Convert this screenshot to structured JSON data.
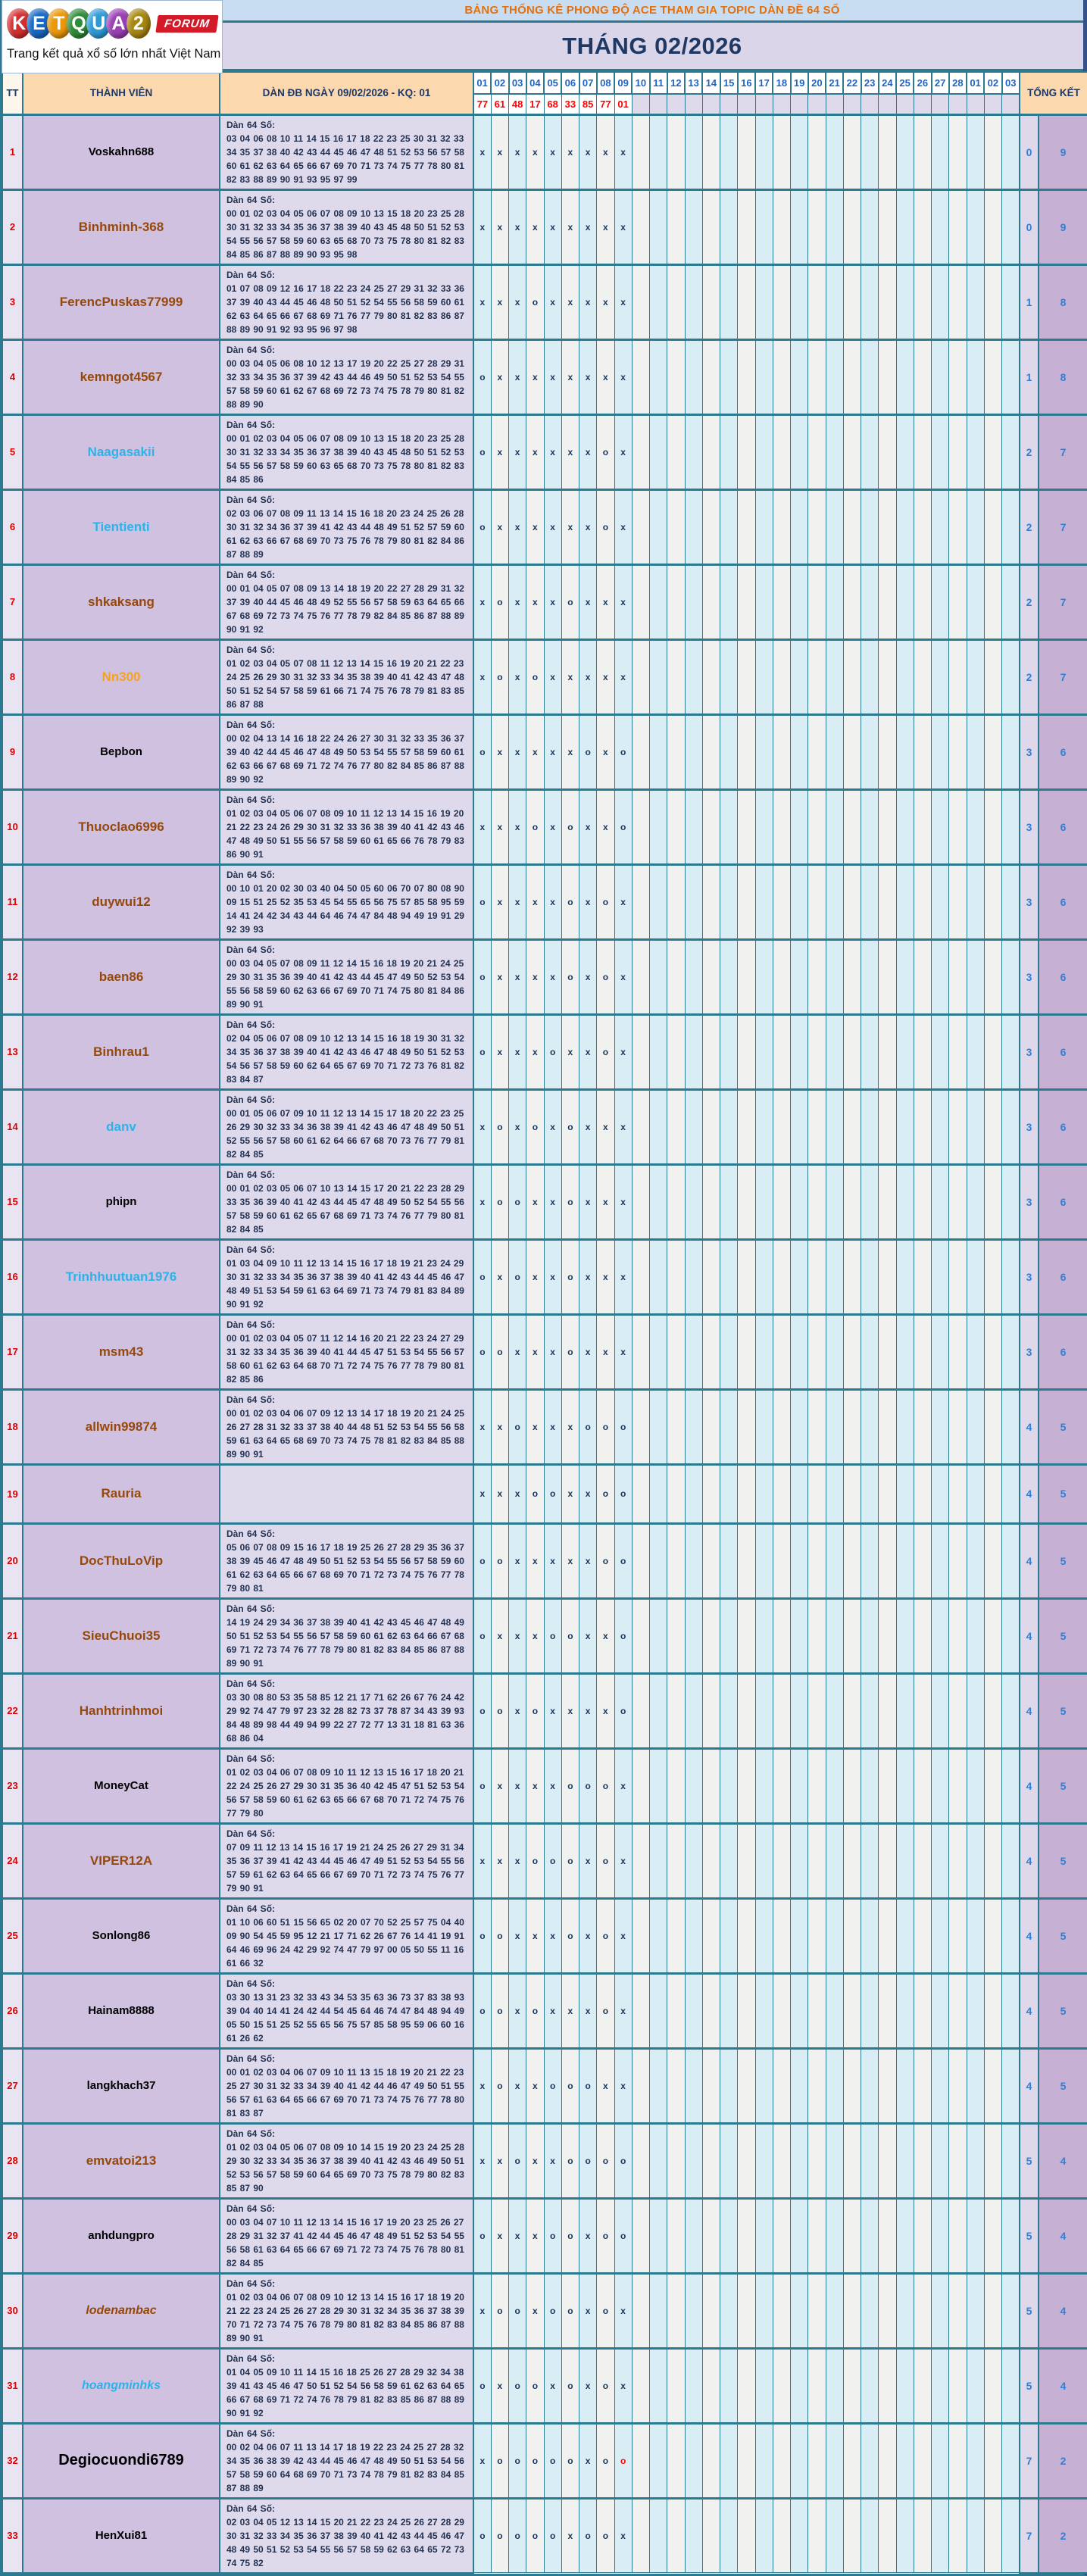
{
  "logo": {
    "letters": [
      {
        "ch": "K",
        "color": "#d42f2f"
      },
      {
        "ch": "E",
        "color": "#1768c6"
      },
      {
        "ch": "T",
        "color": "#eb9709"
      },
      {
        "ch": "Q",
        "color": "#2f8b37"
      },
      {
        "ch": "U",
        "color": "#2b9bd8"
      },
      {
        "ch": "A",
        "color": "#9b3fb5"
      },
      {
        "ch": "2",
        "color": "#a8870f"
      }
    ],
    "forum_badge": "FORUM",
    "tagline": "Trang kết quả xổ số lớn nhất Việt Nam"
  },
  "header": {
    "title": "BẢNG THỐNG KÊ PHONG ĐỘ ACE THAM GIA TOPIC DÀN ĐỀ 64 SỐ",
    "month": "THÁNG 02/2026"
  },
  "table": {
    "tt_label": "TT",
    "member_label": "THÀNH VIÊN",
    "dan_header": "DÀN ĐB NGÀY 09/02/2026 - KQ: 01",
    "total_label": "TỔNG KẾT",
    "dan_prefix": "Dàn 64 Số:",
    "day_columns": [
      "01",
      "02",
      "03",
      "04",
      "05",
      "06",
      "07",
      "08",
      "09",
      "10",
      "11",
      "12",
      "13",
      "14",
      "15",
      "16",
      "17",
      "18",
      "19",
      "20",
      "21",
      "22",
      "23",
      "24",
      "25",
      "26",
      "27",
      "28",
      "01",
      "02",
      "03"
    ],
    "results": [
      "77",
      "61",
      "48",
      "17",
      "68",
      "33",
      "85",
      "77",
      "01"
    ],
    "mark_color": "#17365d",
    "mark_red_color": "#ff0000",
    "rows": [
      {
        "tt": "1",
        "name": "Voskahn688",
        "color": "#000000",
        "size": 15,
        "numbers": "03 04 06 08 10 11 14 15 16 17 18 22 23 25 30 31 32 33 34 35 37 38 40 42 43 44 45 46 47 48 51 52 53 56 57 58 60 61 62 63 64 65 66 67 69 70 71 73 74 75 77 78 80 81 82 83 88 89 90 91 93 95 97 99",
        "marks": [
          "x",
          "x",
          "x",
          "x",
          "x",
          "x",
          "x",
          "x",
          "x"
        ],
        "total_o": "0",
        "total_x": "9"
      },
      {
        "tt": "2",
        "name": "Binhminh-368",
        "color": "#96480b",
        "size": 17,
        "numbers": "00 01 02 03 04 05 06 07 08 09 10 13 15 18 20 23 25 28 30 31 32 33 34 35 36 37 38 39 40 43 45 48 50 51 52 53 54 55 56 57 58 59 60 63 65 68 70 73 75 78 80 81 82 83 84 85 86 87 88 89 90 93 95 98",
        "marks": [
          "x",
          "x",
          "x",
          "x",
          "x",
          "x",
          "x",
          "x",
          "x"
        ],
        "total_o": "0",
        "total_x": "9"
      },
      {
        "tt": "3",
        "name": "FerencPuskas77999",
        "color": "#96480b",
        "size": 17,
        "numbers": "01 07 08 09 12 16 17 18 22 23 24 25 27 29 31 32 33 36 37 39 40 43 44 45 46 48 50 51 52 54 55 56 58 59 60 61 62 63 64 65 66 67 68 69 71 76 77 79 80 81 82 83 86 87 88 89 90 91 92 93 95 96 97 98",
        "marks": [
          "x",
          "x",
          "x",
          "o",
          "x",
          "x",
          "x",
          "x",
          "x"
        ],
        "total_o": "1",
        "total_x": "8"
      },
      {
        "tt": "4",
        "name": "kemngot4567",
        "color": "#96480b",
        "size": 17,
        "numbers": "00 03 04 05 06 08 10 12 13 17 19 20 22 25 27 28 29 31 32 33 34 35 36 37 39 42 43 44 46 49 50 51 52 53 54 55 57 58 59 60 61 62 67 68 69 72 73 74 75 78 79 80 81 82 88 89 90",
        "marks": [
          "o",
          "x",
          "x",
          "x",
          "x",
          "x",
          "x",
          "x",
          "x"
        ],
        "total_o": "1",
        "total_x": "8"
      },
      {
        "tt": "5",
        "name": "Naagasakii",
        "color": "#2eb2ea",
        "size": 17,
        "numbers": "00 01 02 03 04 05 06 07 08 09 10 13 15 18 20 23 25 28 30 31 32 33 34 35 36 37 38 39 40 43 45 48 50 51 52 53 54 55 56 57 58 59 60 63 65 68 70 73 75 78 80 81 82 83 84 85 86",
        "marks": [
          "o",
          "x",
          "x",
          "x",
          "x",
          "x",
          "x",
          "o",
          "x"
        ],
        "total_o": "2",
        "total_x": "7"
      },
      {
        "tt": "6",
        "name": "Tientienti",
        "color": "#2eb2ea",
        "size": 17,
        "numbers": "02 03 06 07 08 09 11 13 14 15 16 18 20 23 24 25 26 28 30 31 32 34 36 37 39 41 42 43 44 48 49 51 52 57 59 60 61 62 63 66 67 68 69 70 73 75 76 78 79 80 81 82 84 86 87 88 89",
        "marks": [
          "o",
          "x",
          "x",
          "x",
          "x",
          "x",
          "x",
          "o",
          "x"
        ],
        "total_o": "2",
        "total_x": "7"
      },
      {
        "tt": "7",
        "name": "shkaksang",
        "color": "#96480b",
        "size": 17,
        "numbers": "00 01 04 05 07 08 09 13 14 18 19 20 22 27 28 29 31 32 37 39 40 44 45 46 48 49 52 55 56 57 58 59 63 64 65 66 67 68 69 72 73 74 75 76 77 78 79 82 84 85 86 87 88 89 90 91 92",
        "marks": [
          "x",
          "o",
          "x",
          "x",
          "x",
          "o",
          "x",
          "x",
          "x"
        ],
        "total_o": "2",
        "total_x": "7"
      },
      {
        "tt": "8",
        "name": "Nn300",
        "color": "#f6a21d",
        "size": 17,
        "numbers": "01 02 03 04 05 07 08 11 12 13 14 15 16 19 20 21 22 23 24 25 26 29 30 31 32 33 34 35 38 39 40 41 42 43 47 48 50 51 52 54 57 58 59 61 66 71 74 75 76 78 79 81 83 85 86 87 88",
        "marks": [
          "x",
          "o",
          "x",
          "o",
          "x",
          "x",
          "x",
          "x",
          "x"
        ],
        "total_o": "2",
        "total_x": "7"
      },
      {
        "tt": "9",
        "name": "Bepbon",
        "color": "#000000",
        "size": 15,
        "numbers": "00 02 04 13 14 16 18 22 24 26 27 30 31 32 33 35 36 37 39 40 42 44 45 46 47 48 49 50 53 54 55 57 58 59 60 61 62 63 66 67 68 69 71 72 74 76 77 80 82 84 85 86 87 88 89 90 92",
        "marks": [
          "o",
          "x",
          "x",
          "x",
          "x",
          "x",
          "o",
          "x",
          "o"
        ],
        "total_o": "3",
        "total_x": "6"
      },
      {
        "tt": "10",
        "name": "Thuoclao6996",
        "color": "#96480b",
        "size": 17,
        "numbers": "01 02 03 04 05 06 07 08 09 10 11 12 13 14 15 16 19 20 21 22 23 24 26 29 30 31 32 33 36 38 39 40 41 42 43 46 47 48 49 50 51 55 56 57 58 59 60 61 65 66 76 78 79 83 86 90 91",
        "marks": [
          "x",
          "x",
          "x",
          "o",
          "x",
          "o",
          "x",
          "x",
          "o"
        ],
        "total_o": "3",
        "total_x": "6"
      },
      {
        "tt": "11",
        "name": "duywui12",
        "color": "#96480b",
        "size": 17,
        "numbers": "00 10 01 20 02 30 03 40 04 50 05 60 06 70 07 80 08 90 09 15 51 25 52 35 53 45 54 55 65 56 75 57 85 58 95 59 14 41 24 42 34 43 44 64 46 74 47 84 48 94 49 19 91 29 92 39 93",
        "marks": [
          "o",
          "x",
          "x",
          "x",
          "x",
          "o",
          "x",
          "o",
          "x"
        ],
        "total_o": "3",
        "total_x": "6"
      },
      {
        "tt": "12",
        "name": "baen86",
        "color": "#96480b",
        "size": 17,
        "numbers": "00 03 04 05 07 08 09 11 12 14 15 16 18 19 20 21 24 25 29 30 31 35 36 39 40 41 42 43 44 45 47 49 50 52 53 54 55 56 58 59 60 62 63 66 67 69 70 71 74 75 80 81 84 86 89 90 91",
        "marks": [
          "o",
          "x",
          "x",
          "x",
          "x",
          "o",
          "x",
          "o",
          "x"
        ],
        "total_o": "3",
        "total_x": "6"
      },
      {
        "tt": "13",
        "name": "Binhrau1",
        "color": "#96480b",
        "size": 17,
        "numbers": "02 04 05 06 07 08 09 10 12 13 14 15 16 18 19 30 31 32 34 35 36 37 38 39 40 41 42 43 46 47 48 49 50 51 52 53 54 56 57 58 59 60 62 64 65 67 69 70 71 72 73 76 81 82 83 84 87",
        "marks": [
          "o",
          "x",
          "x",
          "x",
          "o",
          "x",
          "x",
          "o",
          "x"
        ],
        "total_o": "3",
        "total_x": "6"
      },
      {
        "tt": "14",
        "name": "danv",
        "color": "#2eb2ea",
        "size": 17,
        "numbers": "00 01 05 06 07 09 10 11 12 13 14 15 17 18 20 22 23 25 26 29 30 32 33 34 36 38 39 41 42 43 46 47 48 49 50 51 52 55 56 57 58 60 61 62 64 66 67 68 70 73 76 77 79 81 82 84 85",
        "marks": [
          "x",
          "o",
          "x",
          "o",
          "x",
          "o",
          "x",
          "x",
          "x"
        ],
        "total_o": "3",
        "total_x": "6"
      },
      {
        "tt": "15",
        "name": "phipn",
        "color": "#000000",
        "size": 15,
        "numbers": "00 01 02 03 05 06 07 10 13 14 15 17 20 21 22 23 28 29 33 35 36 39 40 41 42 43 44 45 47 48 49 50 52 54 55 56 57 58 59 60 61 62 65 67 68 69 71 73 74 76 77 79 80 81 82 84 85",
        "marks": [
          "x",
          "o",
          "o",
          "x",
          "x",
          "o",
          "x",
          "x",
          "x"
        ],
        "total_o": "3",
        "total_x": "6"
      },
      {
        "tt": "16",
        "name": "Trinhhuutuan1976",
        "color": "#2eb2ea",
        "size": 17,
        "numbers": "01 03 04 09 10 11 12 13 14 15 16 17 18 19 21 23 24 29 30 31 32 33 34 35 36 37 38 39 40 41 42 43 44 45 46 47 48 49 51 53 54 59 61 63 64 69 71 73 74 79 81 83 84 89 90 91 92",
        "marks": [
          "o",
          "x",
          "o",
          "x",
          "x",
          "o",
          "x",
          "x",
          "x"
        ],
        "total_o": "3",
        "total_x": "6"
      },
      {
        "tt": "17",
        "name": "msm43",
        "color": "#96480b",
        "size": 17,
        "numbers": "00 01 02 03 04 05 07 11 12 14 16 20 21 22 23 24 27 29 31 32 33 34 35 36 39 40 41 44 45 47 51 53 54 55 56 57 58 60 61 62 63 64 68 70 71 72 74 75 76 77 78 79 80 81 82 85 86",
        "marks": [
          "o",
          "o",
          "x",
          "x",
          "x",
          "o",
          "x",
          "x",
          "x"
        ],
        "total_o": "3",
        "total_x": "6"
      },
      {
        "tt": "18",
        "name": "allwin99874",
        "color": "#96480b",
        "size": 17,
        "numbers": "00 01 02 03 04 06 07 09 12 13 14 17 18 19 20 21 24 25 26 27 28 31 32 33 37 38 40 44 48 51 52 53 54 55 56 58 59 61 63 64 65 68 69 70 73 74 75 78 81 82 83 84 85 88 89 90 91",
        "marks": [
          "x",
          "x",
          "o",
          "x",
          "x",
          "x",
          "o",
          "o",
          "o"
        ],
        "total_o": "4",
        "total_x": "5"
      },
      {
        "tt": "19",
        "name": "Rauria",
        "color": "#96480b",
        "size": 17,
        "numbers": "",
        "marks": [
          "x",
          "x",
          "x",
          "o",
          "o",
          "x",
          "x",
          "o",
          "o"
        ],
        "total_o": "4",
        "total_x": "5"
      },
      {
        "tt": "20",
        "name": "DocThuLoVip",
        "color": "#96480b",
        "size": 17,
        "numbers": "05 06 07 08 09 15 16 17 18 19 25 26 27 28 29 35 36 37 38 39 45 46 47 48 49 50 51 52 53 54 55 56 57 58 59 60 61 62 63 64 65 66 67 68 69 70 71 72 73 74 75 76 77 78 79 80 81",
        "marks": [
          "o",
          "o",
          "x",
          "x",
          "x",
          "x",
          "x",
          "o",
          "o"
        ],
        "total_o": "4",
        "total_x": "5"
      },
      {
        "tt": "21",
        "name": "SieuChuoi35",
        "color": "#96480b",
        "size": 17,
        "numbers": "14 19 24 29 34 36 37 38 39 40 41 42 43 45 46 47 48 49 50 51 52 53 54 55 56 57 58 59 60 61 62 63 64 66 67 68 69 71 72 73 74 76 77 78 79 80 81 82 83 84 85 86 87 88 89 90 91",
        "marks": [
          "o",
          "x",
          "x",
          "x",
          "o",
          "o",
          "x",
          "x",
          "o"
        ],
        "total_o": "4",
        "total_x": "5"
      },
      {
        "tt": "22",
        "name": "Hanhtrinhmoi",
        "color": "#96480b",
        "size": 17,
        "numbers": "03 30 08 80 53 35 58 85 12 21 17 71 62 26 67 76 24 42 29 92 74 47 79 97 23 32 28 82 73 37 78 87 34 43 39 93 84 48 89 98 44 49 94 99 22 27 72 77 13 31 18 81 63 36 68 86 04",
        "marks": [
          "o",
          "o",
          "x",
          "o",
          "x",
          "x",
          "x",
          "x",
          "o"
        ],
        "total_o": "4",
        "total_x": "5"
      },
      {
        "tt": "23",
        "name": "MoneyCat",
        "color": "#000000",
        "size": 15,
        "numbers": "01 02 03 04 06 07 08 09 10 11 12 13 15 16 17 18 20 21 22 24 25 26 27 29 30 31 35 36 40 42 45 47 51 52 53 54 56 57 58 59 60 61 62 63 65 66 67 68 70 71 72 74 75 76 77 79 80",
        "marks": [
          "o",
          "x",
          "x",
          "x",
          "x",
          "o",
          "o",
          "o",
          "x"
        ],
        "total_o": "4",
        "total_x": "5"
      },
      {
        "tt": "24",
        "name": "VIPER12A",
        "color": "#96480b",
        "size": 17,
        "numbers": "07 09 11 12 13 14 15 16 17 19 21 24 25 26 27 29 31 34 35 36 37 39 41 42 43 44 45 46 47 49 51 52 53 54 55 56 57 59 61 62 63 64 65 66 67 69 70 71 72 73 74 75 76 77 79 90 91",
        "marks": [
          "x",
          "x",
          "x",
          "o",
          "o",
          "o",
          "x",
          "o",
          "x"
        ],
        "total_o": "4",
        "total_x": "5"
      },
      {
        "tt": "25",
        "name": "Sonlong86",
        "color": "#000000",
        "size": 15,
        "numbers": "01 10 06 60 51 15 56 65 02 20 07 70 52 25 57 75 04 40 09 90 54 45 59 95 12 21 17 71 62 26 67 76 14 41 19 91 64 46 69 96 24 42 29 92 74 47 79 97 00 05 50 55 11 16 61 66 32",
        "marks": [
          "o",
          "o",
          "x",
          "x",
          "x",
          "o",
          "x",
          "o",
          "x"
        ],
        "total_o": "4",
        "total_x": "5"
      },
      {
        "tt": "26",
        "name": "Hainam8888",
        "color": "#000000",
        "size": 15,
        "numbers": "03 30 13 31 23 32 33 43 34 53 35 63 36 73 37 83 38 93 39 04 40 14 41 24 42 44 54 45 64 46 74 47 84 48 94 49 05 50 15 51 25 52 55 65 56 75 57 85 58 95 59 06 60 16 61 26 62",
        "marks": [
          "o",
          "o",
          "x",
          "o",
          "x",
          "x",
          "x",
          "o",
          "x"
        ],
        "total_o": "4",
        "total_x": "5"
      },
      {
        "tt": "27",
        "name": "langkhach37",
        "color": "#000000",
        "size": 15,
        "numbers": "00 01 02 03 04 06 07 09 10 11 13 15 18 19 20 21 22 23 25 27 30 31 32 33 34 39 40 41 42 44 46 47 49 50 51 55 56 57 61 63 64 65 66 67 69 70 71 73 74 75 76 77 78 80 81 83 87",
        "marks": [
          "x",
          "o",
          "x",
          "x",
          "o",
          "o",
          "o",
          "x",
          "x"
        ],
        "total_o": "4",
        "total_x": "5"
      },
      {
        "tt": "28",
        "name": "emvatoi213",
        "color": "#96480b",
        "size": 17,
        "numbers": "01 02 03 04 05 06 07 08 09 10 14 15 19 20 23 24 25 28 29 30 32 33 34 35 36 37 38 39 40 41 42 43 46 49 50 51 52 53 56 57 58 59 60 64 65 69 70 73 75 78 79 80 82 83 85 87 90",
        "marks": [
          "x",
          "x",
          "o",
          "x",
          "x",
          "o",
          "o",
          "o",
          "o"
        ],
        "total_o": "5",
        "total_x": "4"
      },
      {
        "tt": "29",
        "name": "anhdungpro",
        "color": "#000000",
        "size": 15,
        "numbers": "00 03 04 07 10 11 12 13 14 15 16 17 19 20 23 25 26 27 28 29 31 32 37 41 42 44 45 46 47 48 49 51 52 53 54 55 56 58 61 63 64 65 66 67 69 71 72 73 74 75 76 78 80 81 82 84 85",
        "marks": [
          "o",
          "x",
          "x",
          "x",
          "o",
          "o",
          "x",
          "o",
          "o"
        ],
        "total_o": "5",
        "total_x": "4"
      },
      {
        "tt": "30",
        "name": "lodenambac",
        "color": "#96480b",
        "size": 16,
        "italic": true,
        "numbers": "01 02 03 04 06 07 08 09 10 12 13 14 15 16 17 18 19 20 21 22 23 24 25 26 27 28 29 30 31 32 34 35 36 37 38 39 70 71 72 73 74 75 76 78 79 80 81 82 83 84 85 86 87 88 89 90 91",
        "marks": [
          "x",
          "o",
          "o",
          "x",
          "o",
          "o",
          "x",
          "o",
          "x"
        ],
        "total_o": "5",
        "total_x": "4"
      },
      {
        "tt": "31",
        "name": "hoangminhks",
        "color": "#2eb2ea",
        "size": 16,
        "italic": true,
        "numbers": "01 04 05 09 10 11 14 15 16 18 25 26 27 28 29 32 34 38 39 41 43 45 46 47 50 51 52 54 56 58 59 61 62 63 64 65 66 67 68 69 71 72 74 76 78 79 81 82 83 85 86 87 88 89 90 91 92",
        "marks": [
          "o",
          "x",
          "o",
          "o",
          "x",
          "o",
          "x",
          "o",
          "x"
        ],
        "total_o": "5",
        "total_x": "4"
      },
      {
        "tt": "32",
        "name": "Degiocuondi6789",
        "color": "#000000",
        "size": 20,
        "numbers": "00 02 04 06 07 11 13 14 17 18 19 22 23 24 25 27 28 32 34 35 36 38 39 42 43 44 45 46 47 48 49 50 51 53 54 56 57 58 59 60 64 68 69 70 71 73 74 78 79 81 82 83 84 85 87 88 89",
        "marks": [
          "x",
          "o",
          "o",
          "o",
          "o",
          "o",
          "x",
          "o",
          "o"
        ],
        "red_mark_index": 8,
        "total_o": "7",
        "total_x": "2"
      },
      {
        "tt": "33",
        "name": "HenXui81",
        "color": "#000000",
        "size": 15,
        "numbers": "02 03 04 05 12 13 14 15 20 21 22 23 24 25 26 27 28 29 30 31 32 33 34 35 36 37 38 39 40 41 42 43 44 45 46 47 48 49 50 51 52 53 54 55 56 57 58 59 62 63 64 65 72 73 74 75 82",
        "marks": [
          "o",
          "o",
          "o",
          "o",
          "o",
          "x",
          "o",
          "o",
          "x"
        ],
        "total_o": "7",
        "total_x": "2"
      }
    ]
  }
}
